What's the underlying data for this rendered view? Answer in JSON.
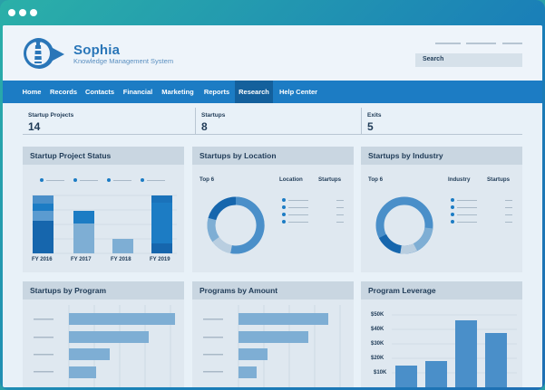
{
  "brand": {
    "name": "Sophia",
    "subtitle": "Knowledge Management System"
  },
  "search": {
    "placeholder": "Search"
  },
  "nav": {
    "items": [
      "Home",
      "Records",
      "Contacts",
      "Financial",
      "Marketing",
      "Reports",
      "Research",
      "Help  Center"
    ],
    "active": "Research"
  },
  "kpis": [
    {
      "label": "Startup Projects",
      "value": "14"
    },
    {
      "label": "Startups",
      "value": "8"
    },
    {
      "label": "Exits",
      "value": "5"
    }
  ],
  "panels": {
    "status": {
      "title": "Startup Project Status",
      "years": [
        "FY 2016",
        "FY 2017",
        "FY 2018",
        "FY 2019"
      ]
    },
    "location": {
      "title": "Startups by Location",
      "top": "Top 6",
      "col1": "Location",
      "col2": "Startups"
    },
    "industry": {
      "title": "Startups by Industry",
      "top": "Top 6",
      "col1": "Industry",
      "col2": "Startups"
    },
    "program": {
      "title": "Startups by Program"
    },
    "amount": {
      "title": "Programs by Amount"
    },
    "leverage": {
      "title": "Program Leverage"
    }
  },
  "chart_data": [
    {
      "type": "bar",
      "title": "Startup Project Status",
      "categories": [
        "FY 2016",
        "FY 2017",
        "FY 2018",
        "FY 2019"
      ],
      "stacked_segments_relative_height": [
        [
          0.42,
          0.28,
          0.14,
          0.16
        ],
        [
          0.0,
          0.5,
          0.0,
          0.5
        ],
        [
          0.0,
          0.0,
          0.0,
          1.0
        ],
        [
          0.17,
          0.59,
          0.0,
          0.24
        ]
      ]
    },
    {
      "type": "pie",
      "title": "Startups by Location",
      "slices_approx": [
        0.55,
        0.16,
        0.11,
        0.18
      ]
    },
    {
      "type": "pie",
      "title": "Startups by Industry",
      "slices_approx": [
        0.62,
        0.15,
        0.09,
        0.14
      ]
    },
    {
      "type": "bar",
      "title": "Startups by Program",
      "orientation": "horizontal",
      "relative_values": [
        1.0,
        0.75,
        0.38,
        0.25
      ]
    },
    {
      "type": "bar",
      "title": "Programs by Amount",
      "orientation": "horizontal",
      "relative_values": [
        1.0,
        0.78,
        0.32,
        0.2
      ]
    },
    {
      "type": "bar",
      "title": "Program Leverage",
      "yticks": [
        "$50K",
        "$40K",
        "$30K",
        "$20K",
        "$10K"
      ],
      "values": [
        15000,
        18000,
        46000,
        37000
      ]
    }
  ]
}
